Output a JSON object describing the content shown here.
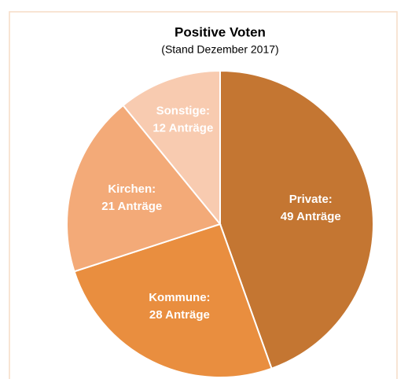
{
  "chart_data": {
    "type": "pie",
    "title": "Positive Voten",
    "subtitle": "(Stand Dezember 2017)",
    "categories": [
      "Private:",
      "Kommune:",
      "Kirchen:",
      "Sonstige:"
    ],
    "values": [
      49,
      28,
      21,
      12
    ],
    "value_labels": [
      "49 Anträge",
      "28 Anträge",
      "21 Anträge",
      "12 Anträge"
    ],
    "colors": [
      "#c47632",
      "#e98e3f",
      "#f3aa78",
      "#f8cbb0"
    ]
  }
}
